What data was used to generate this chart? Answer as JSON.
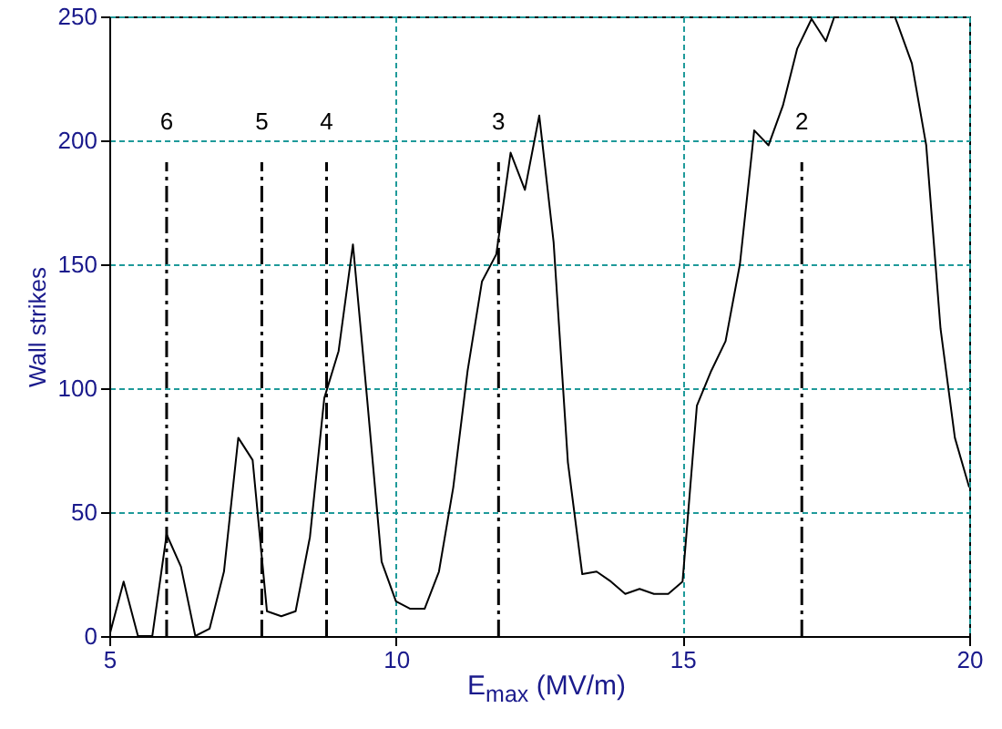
{
  "chart_data": {
    "type": "line",
    "xlabel": "E$_{max}$ (MV/m)",
    "ylabel": "Wall strikes",
    "xlim": [
      5,
      20
    ],
    "xticks": [
      5,
      10,
      15,
      20
    ],
    "ylim": [
      0,
      250
    ],
    "yticks": [
      0,
      50,
      100,
      150,
      200,
      250
    ],
    "grid": true,
    "marker": "none",
    "line_style": "solid",
    "series": [
      {
        "color": "#000000",
        "x": [
          5.0,
          5.25,
          5.5,
          5.75,
          6.0,
          6.25,
          6.5,
          6.75,
          7.0,
          7.25,
          7.5,
          7.75,
          8.0,
          8.25,
          8.5,
          8.75,
          9.0,
          9.25,
          9.5,
          9.75,
          10.0,
          10.25,
          10.5,
          10.75,
          11.0,
          11.25,
          11.5,
          11.75,
          12.0,
          12.25,
          12.5,
          12.75,
          13.0,
          13.25,
          13.5,
          13.75,
          14.0,
          14.25,
          14.5,
          14.75,
          15.0,
          15.25,
          15.5,
          15.75,
          16.0,
          16.25,
          16.5,
          16.75,
          17.0,
          17.25,
          17.5,
          17.65,
          18.1,
          18.7,
          18.75,
          19.0,
          19.25,
          19.5,
          19.75,
          20.0
        ],
        "values": [
          0,
          22,
          0,
          0,
          41,
          28,
          0,
          3,
          26,
          80,
          71,
          10,
          8,
          10,
          40,
          96,
          115,
          158,
          95,
          30,
          14,
          11,
          11,
          26,
          60,
          107,
          143,
          154,
          195,
          180,
          210,
          159,
          70,
          25,
          26,
          22,
          17,
          19,
          17,
          17,
          22,
          93,
          107,
          119,
          150,
          204,
          198,
          214,
          237,
          249,
          240,
          250,
          null,
          250,
          247,
          231,
          198,
          124,
          80,
          60
        ]
      }
    ],
    "ref_lines": [
      {
        "axis": "x",
        "value": 6.0,
        "color": "#000000",
        "line_style": "dashed"
      },
      {
        "axis": "x",
        "value": 7.66,
        "color": "#000000",
        "line_style": "dashed"
      },
      {
        "axis": "x",
        "value": 8.79,
        "color": "#000000",
        "line_style": "dashed"
      },
      {
        "axis": "x",
        "value": 11.79,
        "color": "#000000",
        "line_style": "dashed"
      },
      {
        "axis": "x",
        "value": 17.08,
        "color": "#000000",
        "line_style": "dashed"
      }
    ],
    "annotations": [
      "6",
      "5",
      "4",
      "3",
      "2"
    ]
  }
}
